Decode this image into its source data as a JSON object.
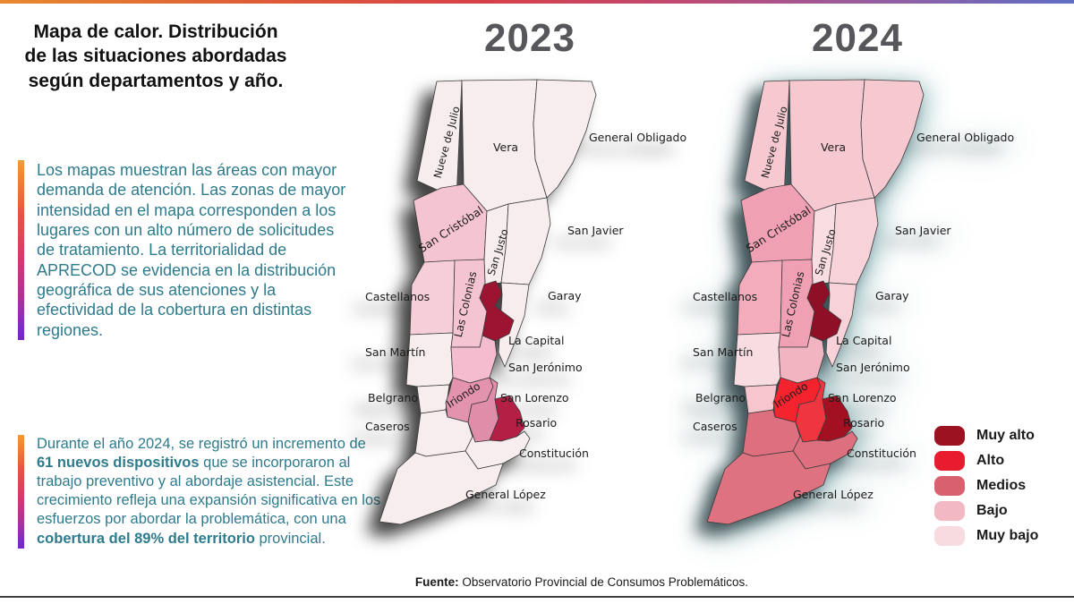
{
  "slide": {
    "title_lines": [
      "Mapa de calor. Distribución",
      "de las situaciones abordadas",
      "según departamentos y año."
    ],
    "callout1": "Los mapas muestran  las áreas con mayor demanda de atención. Las zonas de mayor intensidad en el mapa corresponden a los lugares con un alto número de solicitudes de tratamiento. La territorialidad de APRECOD se evidencia en la distribución geográfica de sus atenciones y la efectividad de la cobertura en distintas regiones.",
    "callout2_segments": [
      {
        "text": "Durante el año 2024, se registró un incremento de ",
        "bold": false
      },
      {
        "text": "61 nuevos dispositivos",
        "bold": true
      },
      {
        "text": " que se incorporaron al trabajo preventivo y al abordaje asistencial. Este crecimiento refleja una expansión significativa en los esfuerzos por abordar la problemática, con una ",
        "bold": false
      },
      {
        "text": "cobertura del 89% del territorio",
        "bold": true
      },
      {
        "text": " provincial.",
        "bold": false
      }
    ],
    "source_label": "Fuente:",
    "source_text": " Observatorio Provincial de Consumos Problemáticos."
  },
  "maps": {
    "year_left": "2023",
    "year_right": "2024"
  },
  "legend": {
    "items": [
      {
        "label": "Muy alto",
        "color": "#9B1221"
      },
      {
        "label": "Alto",
        "color": "#E81C2E"
      },
      {
        "label": "Medios",
        "color": "#D9616F"
      },
      {
        "label": "Bajo",
        "color": "#F2B9C5"
      },
      {
        "label": "Muy bajo",
        "color": "#F6DCE1"
      }
    ]
  },
  "departments": [
    {
      "name": "Nueve de Julio",
      "level_2023": "Muy bajo",
      "level_2024": "Bajo",
      "fill_2023": "#F7ECEE",
      "fill_2024": "#F6C9D1"
    },
    {
      "name": "Vera",
      "level_2023": "Muy bajo",
      "level_2024": "Bajo",
      "fill_2023": "#F7ECEE",
      "fill_2024": "#F6C9D1"
    },
    {
      "name": "General Obligado",
      "level_2023": "Muy bajo",
      "level_2024": "Bajo",
      "fill_2023": "#F7ECEE",
      "fill_2024": "#F6C9D1"
    },
    {
      "name": "San Cristóbal",
      "level_2023": "Bajo",
      "level_2024": "Medios",
      "fill_2023": "#F5C4D3",
      "fill_2024": "#EFA0B2"
    },
    {
      "name": "San Justo",
      "level_2023": "Muy bajo",
      "level_2024": "Muy bajo",
      "fill_2023": "#F7ECEE",
      "fill_2024": "#F8DDE2"
    },
    {
      "name": "San Javier",
      "level_2023": "Muy bajo",
      "level_2024": "Bajo",
      "fill_2023": "#F7ECEE",
      "fill_2024": "#F7D2D9"
    },
    {
      "name": "Castellanos",
      "level_2023": "Bajo",
      "level_2024": "Medios",
      "fill_2023": "#F6CEDA",
      "fill_2024": "#F2ACBC"
    },
    {
      "name": "Las Colonias",
      "level_2023": "Bajo",
      "level_2024": "Medios",
      "fill_2023": "#F5C4D3",
      "fill_2024": "#EFA0B2"
    },
    {
      "name": "Garay",
      "level_2023": "Muy bajo",
      "level_2024": "Bajo",
      "fill_2023": "#F7ECEE",
      "fill_2024": "#F7D2D9"
    },
    {
      "name": "La Capital",
      "level_2023": "Muy alto",
      "level_2024": "Muy alto",
      "fill_2023": "#9C1431",
      "fill_2024": "#8E0F26"
    },
    {
      "name": "San Martín",
      "level_2023": "Muy bajo",
      "level_2024": "Muy bajo",
      "fill_2023": "#F7ECEE",
      "fill_2024": "#F7DCE2"
    },
    {
      "name": "San Jerónimo",
      "level_2023": "Bajo",
      "level_2024": "Bajo",
      "fill_2023": "#F4BCCE",
      "fill_2024": "#F3B4C1"
    },
    {
      "name": "Belgrano",
      "level_2023": "Muy bajo",
      "level_2024": "Bajo",
      "fill_2023": "#F7ECEE",
      "fill_2024": "#F6C5CE"
    },
    {
      "name": "Iriondo",
      "level_2023": "Medios",
      "level_2024": "Alto",
      "fill_2023": "#E393AE",
      "fill_2024": "#F4232E"
    },
    {
      "name": "San Lorenzo",
      "level_2023": "Medios",
      "level_2024": "Alto",
      "fill_2023": "#E08DA9",
      "fill_2024": "#EF3540"
    },
    {
      "name": "Rosario",
      "level_2023": "Muy alto",
      "level_2024": "Muy alto",
      "fill_2023": "#B42045",
      "fill_2024": "#A31021"
    },
    {
      "name": "Caseros",
      "level_2023": "Muy bajo",
      "level_2024": "Medios",
      "fill_2023": "#F7ECEE",
      "fill_2024": "#DD6F7F"
    },
    {
      "name": "Constitución",
      "level_2023": "Muy bajo",
      "level_2024": "Medios",
      "fill_2023": "#F7ECEE",
      "fill_2024": "#DD6F7F"
    },
    {
      "name": "General López",
      "level_2023": "Muy bajo",
      "level_2024": "Medios",
      "fill_2023": "#F7ECEE",
      "fill_2024": "#DE7280"
    }
  ],
  "chart_data": {
    "type": "heatmap",
    "subtype": "choropleth-map-pair",
    "title": "Mapa de calor. Distribución de las situaciones abordadas según departamentos y año.",
    "years": [
      "2023",
      "2024"
    ],
    "scale": [
      "Muy bajo",
      "Bajo",
      "Medios",
      "Alto",
      "Muy alto"
    ],
    "legend_position": "bottom-right",
    "values": [
      {
        "department": "Nueve de Julio",
        "y2023": "Muy bajo",
        "y2024": "Bajo"
      },
      {
        "department": "Vera",
        "y2023": "Muy bajo",
        "y2024": "Bajo"
      },
      {
        "department": "General Obligado",
        "y2023": "Muy bajo",
        "y2024": "Bajo"
      },
      {
        "department": "San Cristóbal",
        "y2023": "Bajo",
        "y2024": "Medios"
      },
      {
        "department": "San Justo",
        "y2023": "Muy bajo",
        "y2024": "Muy bajo"
      },
      {
        "department": "San Javier",
        "y2023": "Muy bajo",
        "y2024": "Bajo"
      },
      {
        "department": "Castellanos",
        "y2023": "Bajo",
        "y2024": "Medios"
      },
      {
        "department": "Las Colonias",
        "y2023": "Bajo",
        "y2024": "Medios"
      },
      {
        "department": "Garay",
        "y2023": "Muy bajo",
        "y2024": "Bajo"
      },
      {
        "department": "La Capital",
        "y2023": "Muy alto",
        "y2024": "Muy alto"
      },
      {
        "department": "San Martín",
        "y2023": "Muy bajo",
        "y2024": "Muy bajo"
      },
      {
        "department": "San Jerónimo",
        "y2023": "Bajo",
        "y2024": "Bajo"
      },
      {
        "department": "Belgrano",
        "y2023": "Muy bajo",
        "y2024": "Bajo"
      },
      {
        "department": "Iriondo",
        "y2023": "Medios",
        "y2024": "Alto"
      },
      {
        "department": "San Lorenzo",
        "y2023": "Medios",
        "y2024": "Alto"
      },
      {
        "department": "Rosario",
        "y2023": "Muy alto",
        "y2024": "Muy alto"
      },
      {
        "department": "Caseros",
        "y2023": "Muy bajo",
        "y2024": "Medios"
      },
      {
        "department": "Constitución",
        "y2023": "Muy bajo",
        "y2024": "Medios"
      },
      {
        "department": "General López",
        "y2023": "Muy bajo",
        "y2024": "Medios"
      }
    ]
  }
}
